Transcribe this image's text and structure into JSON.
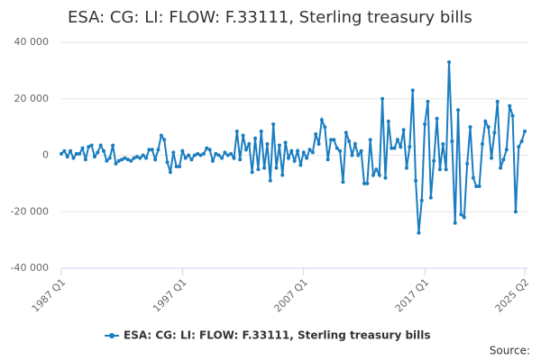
{
  "chart_data": {
    "type": "line",
    "title": "ESA: CG: LI: FLOW: F.33111, Sterling treasury bills",
    "categories": [
      "1987 Q1",
      null,
      null,
      null,
      null,
      null,
      null,
      null,
      null,
      null,
      null,
      null,
      null,
      null,
      null,
      null,
      null,
      null,
      null,
      null,
      null,
      null,
      null,
      null,
      null,
      null,
      null,
      null,
      null,
      null,
      null,
      null,
      null,
      null,
      null,
      null,
      null,
      null,
      null,
      null,
      "1997 Q1",
      null,
      null,
      null,
      null,
      null,
      null,
      null,
      null,
      null,
      null,
      null,
      null,
      null,
      null,
      null,
      null,
      null,
      null,
      null,
      null,
      null,
      null,
      null,
      null,
      null,
      null,
      null,
      null,
      null,
      null,
      null,
      null,
      null,
      null,
      null,
      null,
      null,
      null,
      null,
      "2007 Q1",
      null,
      null,
      null,
      null,
      null,
      null,
      null,
      null,
      null,
      null,
      null,
      null,
      null,
      null,
      null,
      null,
      null,
      null,
      null,
      null,
      null,
      null,
      null,
      null,
      null,
      null,
      null,
      null,
      null,
      null,
      null,
      null,
      null,
      null,
      null,
      null,
      null,
      null,
      null,
      "2017 Q1",
      null,
      null,
      null,
      null,
      null,
      null,
      null,
      null,
      null,
      null,
      null,
      null,
      null,
      null,
      null,
      null,
      null,
      null,
      null,
      null,
      null,
      null,
      null,
      null,
      null,
      null,
      null,
      null,
      null,
      null,
      null,
      null,
      "2025 Q2"
    ],
    "series": [
      {
        "name": "ESA: CG: LI: FLOW: F.33111, Sterling treasury bills",
        "color": "#1a7dc0",
        "values": [
          500,
          1500,
          -500,
          1500,
          -1000,
          500,
          500,
          2500,
          -1500,
          3000,
          3500,
          -500,
          1000,
          3500,
          1500,
          -2000,
          -1000,
          3500,
          -3000,
          -2000,
          -1500,
          -1000,
          -1500,
          -2000,
          -1000,
          -500,
          -1000,
          0,
          -1000,
          2000,
          2000,
          -1500,
          2000,
          7000,
          5500,
          -2500,
          -6000,
          1000,
          -4000,
          -4000,
          1500,
          -1000,
          0,
          -1500,
          0,
          500,
          0,
          500,
          2500,
          2000,
          -2000,
          500,
          0,
          -1000,
          1000,
          0,
          500,
          -1000,
          8500,
          -1500,
          7000,
          2000,
          4000,
          -6000,
          6000,
          -5000,
          8500,
          -4500,
          4000,
          -9000,
          11000,
          -4500,
          3500,
          -7000,
          4500,
          -1000,
          1500,
          -2000,
          1500,
          -3500,
          1000,
          -1000,
          2000,
          1000,
          7500,
          4000,
          12500,
          10000,
          -1500,
          5500,
          5500,
          2500,
          1500,
          -9500,
          8000,
          5000,
          0,
          4000,
          0,
          1500,
          -10000,
          -10000,
          5500,
          -7000,
          -5000,
          -7000,
          20000,
          -8000,
          12000,
          2500,
          2500,
          5500,
          3000,
          9000,
          -4500,
          3000,
          23000,
          -9000,
          -27500,
          -16000,
          11000,
          19000,
          -15000,
          -2000,
          13000,
          -5000,
          4000,
          -5000,
          33000,
          5000,
          -24000,
          16000,
          -21000,
          -22000,
          -3000,
          10000,
          -8000,
          -11000,
          -11000,
          4000,
          12000,
          10000,
          -1000,
          8000,
          19000,
          -4500,
          -1500,
          2000,
          17500,
          14000,
          -20000,
          3000,
          5000,
          8500
        ]
      }
    ],
    "ylim": [
      -40000,
      40000
    ],
    "yticks": [
      {
        "value": -40000,
        "label": "-40 000"
      },
      {
        "value": -20000,
        "label": "-20 000"
      },
      0,
      {
        "value": 20000,
        "label": "20 000"
      },
      {
        "value": 40000,
        "label": "40 000"
      }
    ],
    "grid": true,
    "legend": "bottom",
    "source": "Source:"
  }
}
